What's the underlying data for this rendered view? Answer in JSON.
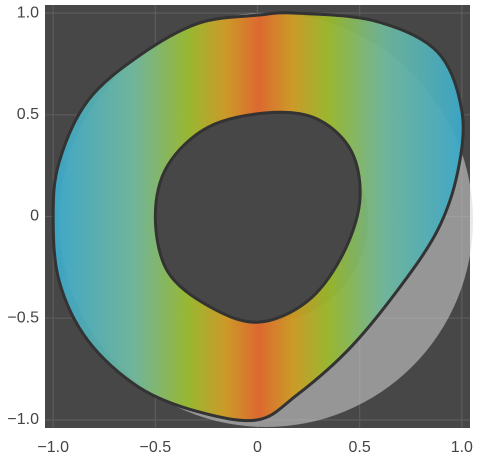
{
  "chart_data": {
    "type": "region",
    "xlim": [
      -1.04,
      1.04
    ],
    "ylim": [
      -1.04,
      1.04
    ],
    "xticks": [
      {
        "value": -1.0,
        "label": "−1.0"
      },
      {
        "value": -0.5,
        "label": "−0.5"
      },
      0,
      0.5,
      {
        "value": 1.0,
        "label": "1.0"
      }
    ],
    "yticks": [
      {
        "value": -1.0,
        "label": "−1.0"
      },
      {
        "value": -0.5,
        "label": "−0.5"
      },
      0,
      0.5,
      {
        "value": 1.0,
        "label": "1.0"
      }
    ],
    "grid": true,
    "outer": {
      "x": [
        0,
        0.19,
        0.58,
        0.88,
        1.0,
        0.98,
        0.88,
        0.68,
        0.44,
        0.19,
        0,
        -0.29,
        -0.58,
        -0.83,
        -0.97,
        -1.0,
        -0.97,
        -0.83,
        -0.58,
        -0.29
      ],
      "y": [
        0.99,
        1.0,
        0.96,
        0.81,
        0.52,
        0.22,
        -0.07,
        -0.37,
        -0.66,
        -0.88,
        -1.0,
        -0.96,
        -0.84,
        -0.61,
        -0.32,
        0,
        0.27,
        0.57,
        0.79,
        0.95
      ]
    },
    "inner": {
      "x": [
        0.05,
        0.29,
        0.46,
        0.5,
        0.41,
        0.24,
        0,
        -0.24,
        -0.44,
        -0.5,
        -0.44,
        -0.24
      ],
      "y": [
        0.51,
        0.48,
        0.32,
        0.07,
        -0.2,
        -0.42,
        -0.52,
        -0.44,
        -0.27,
        0,
        0.25,
        0.44
      ]
    }
  }
}
